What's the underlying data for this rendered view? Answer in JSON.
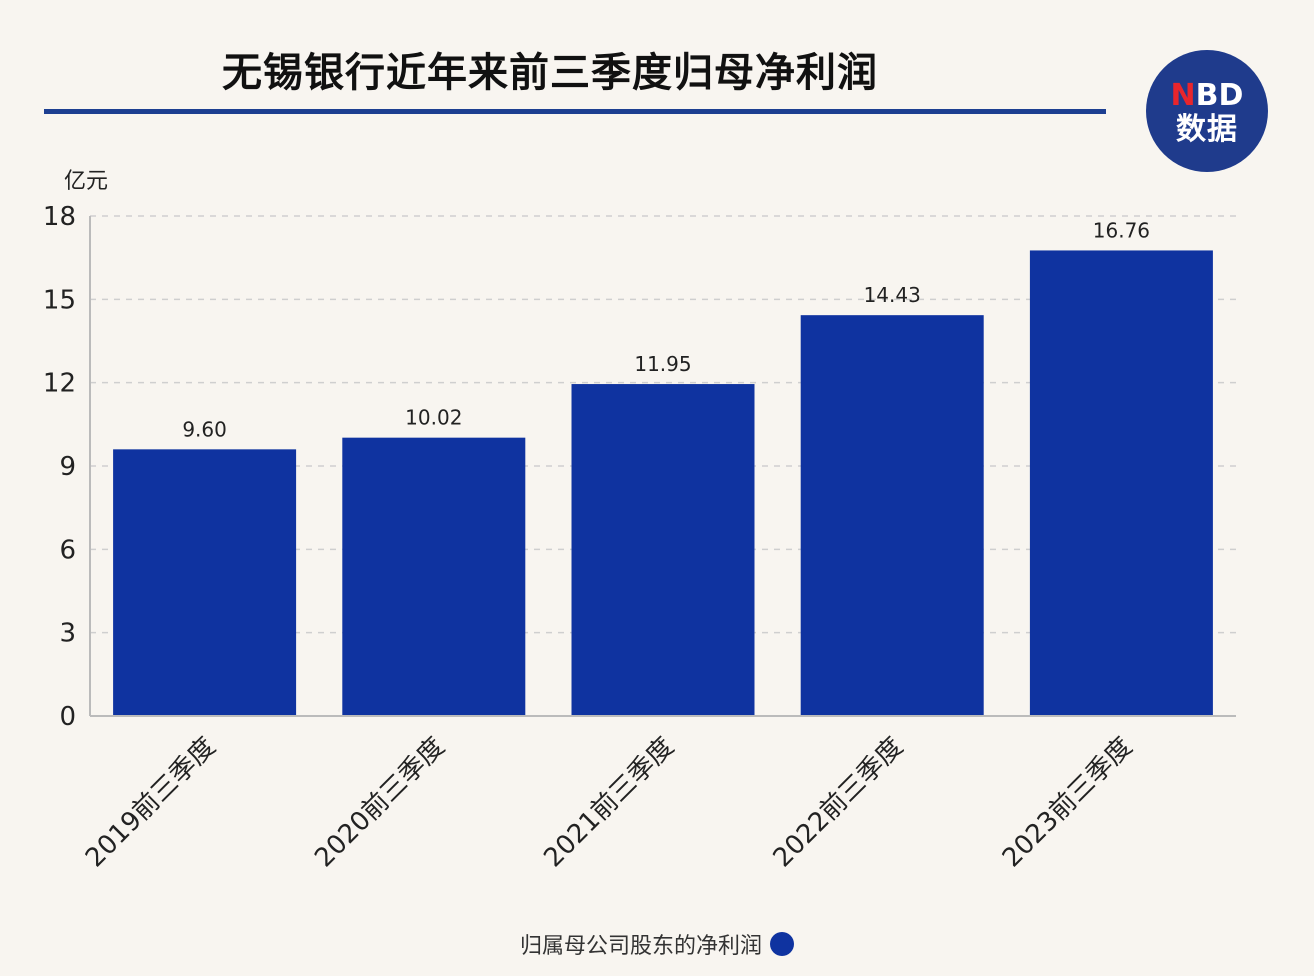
{
  "colors": {
    "background": "#f8f5f0",
    "bar": "#0f33a0",
    "title_rule": "#1d3f91",
    "grid": "#cfcfcf",
    "logo_bg": "#1f3b8c",
    "logo_accent": "#e8252c"
  },
  "logo": {
    "line1_n": "N",
    "line1_rest": "BD",
    "line2": "数据"
  },
  "chart_data": {
    "type": "bar",
    "title": "无锡银行近年来前三季度归母净利润",
    "yunit": "亿元",
    "categories": [
      "2019前三季度",
      "2020前三季度",
      "2021前三季度",
      "2022前三季度",
      "2023前三季度"
    ],
    "series": [
      {
        "name": "归属母公司股东的净利润",
        "values": [
          9.6,
          10.02,
          11.95,
          14.43,
          16.76
        ],
        "labels": [
          "9.60",
          "10.02",
          "11.95",
          "14.43",
          "16.76"
        ]
      }
    ],
    "ylim": [
      0,
      18
    ],
    "yticks": [
      0,
      3,
      6,
      9,
      12,
      15,
      18
    ],
    "grid": true,
    "legend_position": "bottom"
  }
}
